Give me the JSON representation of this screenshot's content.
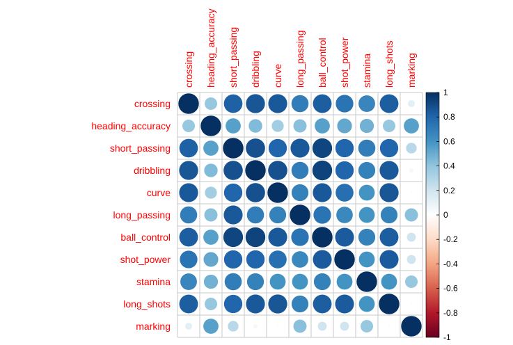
{
  "chart_data": {
    "type": "heatmap",
    "style": "circle correlation matrix",
    "variables": [
      "crossing",
      "heading_accuracy",
      "short_passing",
      "dribbling",
      "curve",
      "long_passing",
      "ball_control",
      "shot_power",
      "stamina",
      "long_shots",
      "marking"
    ],
    "matrix": [
      [
        1.0,
        0.38,
        0.82,
        0.86,
        0.85,
        0.7,
        0.83,
        0.74,
        0.66,
        0.83,
        0.12
      ],
      [
        0.38,
        1.0,
        0.55,
        0.44,
        0.35,
        0.42,
        0.55,
        0.52,
        0.48,
        0.38,
        0.55
      ],
      [
        0.82,
        0.55,
        1.0,
        0.88,
        0.8,
        0.85,
        0.92,
        0.8,
        0.7,
        0.8,
        0.28
      ],
      [
        0.86,
        0.44,
        0.88,
        1.0,
        0.88,
        0.7,
        0.93,
        0.8,
        0.68,
        0.85,
        0.05
      ],
      [
        0.85,
        0.35,
        0.8,
        0.88,
        1.0,
        0.68,
        0.85,
        0.76,
        0.6,
        0.86,
        0.02
      ],
      [
        0.7,
        0.42,
        0.85,
        0.7,
        0.68,
        1.0,
        0.74,
        0.65,
        0.6,
        0.68,
        0.42
      ],
      [
        0.83,
        0.55,
        0.92,
        0.93,
        0.85,
        0.74,
        1.0,
        0.84,
        0.68,
        0.83,
        0.2
      ],
      [
        0.74,
        0.52,
        0.8,
        0.8,
        0.76,
        0.65,
        0.84,
        1.0,
        0.6,
        0.84,
        0.2
      ],
      [
        0.66,
        0.48,
        0.7,
        0.68,
        0.6,
        0.6,
        0.68,
        0.6,
        1.0,
        0.6,
        0.38
      ],
      [
        0.83,
        0.38,
        0.8,
        0.85,
        0.86,
        0.68,
        0.83,
        0.84,
        0.6,
        1.0,
        0.02
      ],
      [
        0.12,
        0.55,
        0.28,
        0.05,
        0.02,
        0.42,
        0.2,
        0.2,
        0.38,
        0.02,
        1.0
      ]
    ],
    "colorbar": {
      "ticks": [
        "1",
        "0.8",
        "0.6",
        "0.4",
        "0.2",
        "0",
        "-0.2",
        "-0.4",
        "-0.6",
        "-0.8",
        "-1"
      ],
      "range": [
        -1,
        1
      ],
      "colors": [
        "#67001F",
        "#B2182B",
        "#D6604D",
        "#F4A582",
        "#FDDBC7",
        "#FFFFFF",
        "#D1E5F0",
        "#92C5DE",
        "#4393C3",
        "#2166AC",
        "#053061"
      ]
    },
    "title": "",
    "grid": true,
    "label_color": "#ff0000"
  }
}
